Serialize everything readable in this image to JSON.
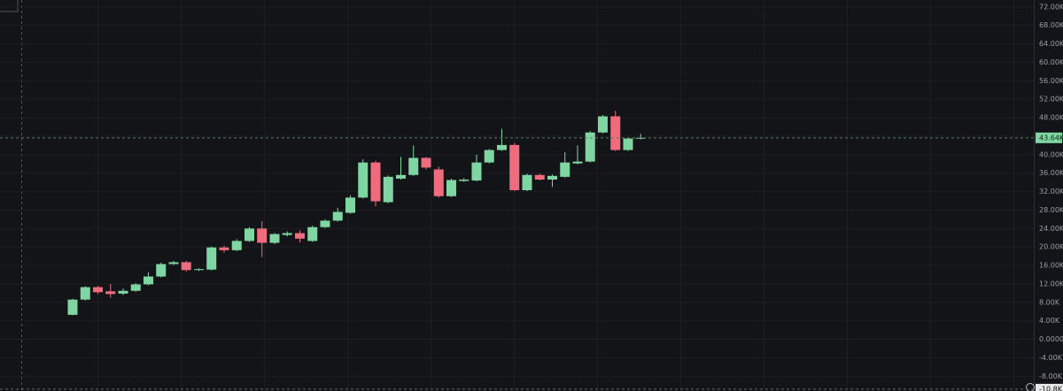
{
  "chart_data": {
    "type": "candlestick",
    "up_color": "#7fd6a2",
    "down_color": "#ee6c7e",
    "open": [
      5300,
      8600,
      11300,
      10400,
      9900,
      10500,
      11900,
      13600,
      16300,
      16700,
      15000,
      15100,
      19900,
      19300,
      21300,
      24000,
      20900,
      22600,
      23000,
      21300,
      24300,
      25700,
      27400,
      30700,
      38300,
      29700,
      34800,
      35600,
      39300,
      36800,
      31000,
      34300,
      34400,
      38300,
      41000,
      42100,
      32300,
      35600,
      34600,
      35200,
      38100,
      38500,
      44800,
      48300,
      41000,
      43500
    ],
    "high": [
      8800,
      11500,
      11600,
      12000,
      11000,
      12200,
      14500,
      16600,
      17000,
      17000,
      15400,
      20100,
      20300,
      21700,
      24300,
      25600,
      23000,
      23400,
      23600,
      24600,
      26000,
      28500,
      31200,
      39000,
      38700,
      35500,
      39500,
      42000,
      39500,
      37400,
      34800,
      34900,
      40000,
      41200,
      45600,
      42500,
      35900,
      35900,
      35700,
      40500,
      42000,
      45100,
      48600,
      49500,
      43700,
      44500
    ],
    "low": [
      5200,
      8400,
      9800,
      9000,
      9600,
      10300,
      11700,
      13400,
      16100,
      14700,
      14800,
      14900,
      18800,
      19100,
      21100,
      17800,
      20600,
      22300,
      21000,
      21100,
      24100,
      25500,
      27200,
      30500,
      28800,
      29500,
      34600,
      35400,
      36800,
      30700,
      30800,
      34100,
      34200,
      38100,
      40800,
      32100,
      32100,
      34400,
      33000,
      35000,
      37900,
      38300,
      44600,
      40800,
      40800,
      43300
    ],
    "close": [
      8600,
      11300,
      10200,
      9800,
      10500,
      11900,
      13600,
      16300,
      16700,
      15000,
      15200,
      19900,
      19300,
      21300,
      24000,
      20900,
      22800,
      23000,
      21800,
      24300,
      25700,
      27600,
      30700,
      38300,
      29900,
      35200,
      35600,
      39300,
      37200,
      31000,
      34500,
      34600,
      38300,
      41000,
      42100,
      32300,
      35600,
      34600,
      35400,
      38300,
      38500,
      44800,
      48300,
      41000,
      43500,
      43640
    ],
    "ylim": [
      -11200,
      73500
    ],
    "yticks": [
      {
        "value": -8000,
        "label": "-8.00K"
      },
      {
        "value": -4000,
        "label": "-4.00K"
      },
      {
        "value": 0,
        "label": "0.0000"
      },
      {
        "value": 4000,
        "label": "4.00K"
      },
      {
        "value": 8000,
        "label": "8.00K"
      },
      {
        "value": 12000,
        "label": "12.00K"
      },
      {
        "value": 16000,
        "label": "16.00K"
      },
      {
        "value": 20000,
        "label": "20.00K"
      },
      {
        "value": 24000,
        "label": "24.00K"
      },
      {
        "value": 28000,
        "label": "28.00K"
      },
      {
        "value": 32000,
        "label": "32.00K"
      },
      {
        "value": 36000,
        "label": "36.00K"
      },
      {
        "value": 40000,
        "label": "40.00K"
      },
      {
        "value": 44000,
        "label": "44.00K"
      },
      {
        "value": 48000,
        "label": "48.00K"
      },
      {
        "value": 52000,
        "label": "52.00K"
      },
      {
        "value": 56000,
        "label": "56.00K"
      },
      {
        "value": 60000,
        "label": "60.00K"
      },
      {
        "value": 64000,
        "label": "64.00K"
      },
      {
        "value": 68000,
        "label": "68.00K"
      },
      {
        "value": 72000,
        "label": "72.00K"
      }
    ],
    "last_price": {
      "value": 43640,
      "label": "43.64K"
    },
    "crosshair": {
      "value": -10800,
      "label": "-10.8K"
    }
  }
}
